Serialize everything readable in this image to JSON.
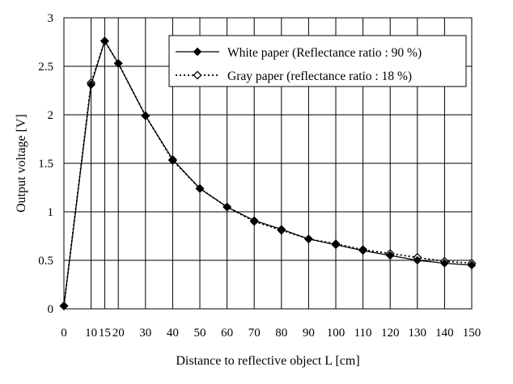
{
  "chart_data": {
    "type": "line",
    "xlabel": "Distance to reflective object L [cm]",
    "ylabel": "Output voltage [V]",
    "xlim": [
      0,
      150
    ],
    "ylim": [
      0,
      3
    ],
    "x_ticks": [
      "0",
      "10",
      "15",
      "20",
      "30",
      "40",
      "50",
      "60",
      "70",
      "80",
      "90",
      "100",
      "110",
      "120",
      "130",
      "140",
      "150"
    ],
    "x_tick_values": [
      0,
      10,
      15,
      20,
      30,
      40,
      50,
      60,
      70,
      80,
      90,
      100,
      110,
      120,
      130,
      140,
      150
    ],
    "y_ticks": [
      "0",
      "0.5",
      "1",
      "1.5",
      "2",
      "2.5",
      "3"
    ],
    "y_tick_values": [
      0,
      0.5,
      1,
      1.5,
      2,
      2.5,
      3
    ],
    "grid": true,
    "legend_position": "top-right",
    "x": [
      0,
      10,
      15,
      20,
      30,
      40,
      50,
      60,
      70,
      80,
      90,
      100,
      110,
      120,
      130,
      140,
      150
    ],
    "series": [
      {
        "name": "White paper (Reflectance ratio : 90 %)",
        "values": [
          0.03,
          2.31,
          2.76,
          2.53,
          1.99,
          1.54,
          1.24,
          1.05,
          0.91,
          0.82,
          0.72,
          0.66,
          0.6,
          0.55,
          0.5,
          0.47,
          0.45
        ],
        "line_style": "solid",
        "marker": "filled-diamond",
        "color": "#000000"
      },
      {
        "name": "Gray paper (reflectance ratio : 18 %)",
        "values": [
          0.03,
          2.33,
          2.76,
          2.53,
          1.99,
          1.53,
          1.24,
          1.05,
          0.9,
          0.81,
          0.72,
          0.67,
          0.61,
          0.57,
          0.53,
          0.49,
          0.47
        ],
        "line_style": "dotted",
        "marker": "hollow-diamond",
        "color": "#000000"
      }
    ]
  }
}
